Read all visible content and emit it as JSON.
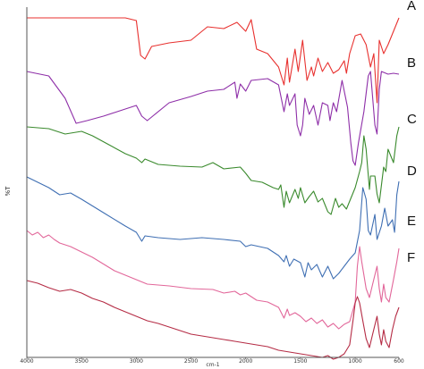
{
  "chart_data": {
    "type": "line",
    "title": "",
    "xlabel": "cm-1",
    "ylabel": "%T",
    "xlim": [
      4000,
      600
    ],
    "x_reversed": true,
    "x_ticks": [
      "4000",
      "3500",
      "3000",
      "2500",
      "2000",
      "1500",
      "1000",
      "600"
    ],
    "grid": false,
    "legend": "labels at right end of each trace",
    "series": [
      {
        "name": "A",
        "color": "#e8312f",
        "points": [
          [
            4000,
            0
          ],
          [
            3100,
            0
          ],
          [
            3000,
            -3
          ],
          [
            2960,
            -42
          ],
          [
            2920,
            -46
          ],
          [
            2860,
            -32
          ],
          [
            2700,
            -28
          ],
          [
            2500,
            -25
          ],
          [
            2350,
            -10
          ],
          [
            2200,
            -12
          ],
          [
            2080,
            -5
          ],
          [
            2000,
            -15
          ],
          [
            1950,
            -2
          ],
          [
            1900,
            -35
          ],
          [
            1800,
            -40
          ],
          [
            1700,
            -55
          ],
          [
            1650,
            -75
          ],
          [
            1620,
            -45
          ],
          [
            1600,
            -72
          ],
          [
            1550,
            -35
          ],
          [
            1520,
            -60
          ],
          [
            1480,
            -25
          ],
          [
            1440,
            -70
          ],
          [
            1400,
            -55
          ],
          [
            1380,
            -65
          ],
          [
            1340,
            -45
          ],
          [
            1300,
            -60
          ],
          [
            1250,
            -50
          ],
          [
            1200,
            -62
          ],
          [
            1150,
            -58
          ],
          [
            1100,
            -48
          ],
          [
            1080,
            -62
          ],
          [
            1050,
            -40
          ],
          [
            1000,
            -20
          ],
          [
            950,
            -18
          ],
          [
            900,
            -30
          ],
          [
            860,
            -55
          ],
          [
            830,
            -40
          ],
          [
            800,
            -95
          ],
          [
            780,
            -25
          ],
          [
            740,
            -40
          ],
          [
            700,
            -30
          ],
          [
            650,
            -15
          ],
          [
            600,
            0
          ]
        ]
      },
      {
        "name": "B",
        "color": "#8e2fa8",
        "points": [
          [
            4000,
            0
          ],
          [
            3800,
            -5
          ],
          [
            3650,
            -30
          ],
          [
            3550,
            -58
          ],
          [
            3450,
            -55
          ],
          [
            3300,
            -50
          ],
          [
            3100,
            -42
          ],
          [
            3000,
            -38
          ],
          [
            2950,
            -50
          ],
          [
            2900,
            -55
          ],
          [
            2850,
            -50
          ],
          [
            2700,
            -35
          ],
          [
            2500,
            -28
          ],
          [
            2350,
            -22
          ],
          [
            2200,
            -20
          ],
          [
            2100,
            -12
          ],
          [
            2080,
            -30
          ],
          [
            2050,
            -14
          ],
          [
            2000,
            -22
          ],
          [
            1950,
            -10
          ],
          [
            1800,
            -8
          ],
          [
            1700,
            -15
          ],
          [
            1650,
            -45
          ],
          [
            1620,
            -25
          ],
          [
            1600,
            -38
          ],
          [
            1550,
            -25
          ],
          [
            1530,
            -60
          ],
          [
            1500,
            -72
          ],
          [
            1480,
            -60
          ],
          [
            1460,
            -30
          ],
          [
            1420,
            -48
          ],
          [
            1380,
            -38
          ],
          [
            1340,
            -60
          ],
          [
            1300,
            -35
          ],
          [
            1250,
            -38
          ],
          [
            1230,
            -55
          ],
          [
            1200,
            -35
          ],
          [
            1170,
            -45
          ],
          [
            1120,
            -10
          ],
          [
            1070,
            -40
          ],
          [
            1040,
            -80
          ],
          [
            1020,
            -100
          ],
          [
            1000,
            -105
          ],
          [
            970,
            -80
          ],
          [
            920,
            -45
          ],
          [
            880,
            -5
          ],
          [
            860,
            0
          ],
          [
            820,
            -60
          ],
          [
            800,
            -70
          ],
          [
            780,
            -20
          ],
          [
            760,
            0
          ],
          [
            700,
            -3
          ],
          [
            650,
            -2
          ],
          [
            600,
            -3
          ]
        ]
      },
      {
        "name": "C",
        "color": "#3a8a2d",
        "points": [
          [
            4000,
            0
          ],
          [
            3800,
            -2
          ],
          [
            3650,
            -8
          ],
          [
            3500,
            -5
          ],
          [
            3400,
            -10
          ],
          [
            3250,
            -20
          ],
          [
            3100,
            -30
          ],
          [
            3000,
            -35
          ],
          [
            2950,
            -40
          ],
          [
            2920,
            -36
          ],
          [
            2800,
            -42
          ],
          [
            2600,
            -44
          ],
          [
            2400,
            -45
          ],
          [
            2300,
            -40
          ],
          [
            2200,
            -47
          ],
          [
            2050,
            -45
          ],
          [
            2000,
            -52
          ],
          [
            1950,
            -60
          ],
          [
            1850,
            -62
          ],
          [
            1750,
            -68
          ],
          [
            1700,
            -70
          ],
          [
            1680,
            -65
          ],
          [
            1650,
            -90
          ],
          [
            1630,
            -72
          ],
          [
            1600,
            -85
          ],
          [
            1550,
            -70
          ],
          [
            1520,
            -80
          ],
          [
            1500,
            -68
          ],
          [
            1460,
            -85
          ],
          [
            1420,
            -78
          ],
          [
            1380,
            -72
          ],
          [
            1340,
            -84
          ],
          [
            1300,
            -80
          ],
          [
            1250,
            -95
          ],
          [
            1220,
            -98
          ],
          [
            1180,
            -80
          ],
          [
            1150,
            -90
          ],
          [
            1120,
            -86
          ],
          [
            1080,
            -92
          ],
          [
            1040,
            -80
          ],
          [
            1000,
            -68
          ],
          [
            960,
            -50
          ],
          [
            940,
            -40
          ],
          [
            920,
            -10
          ],
          [
            900,
            -25
          ],
          [
            870,
            -70
          ],
          [
            860,
            -55
          ],
          [
            820,
            -55
          ],
          [
            800,
            -75
          ],
          [
            780,
            -85
          ],
          [
            740,
            -45
          ],
          [
            720,
            -50
          ],
          [
            700,
            -25
          ],
          [
            650,
            -40
          ],
          [
            620,
            -10
          ],
          [
            600,
            0
          ]
        ]
      },
      {
        "name": "D",
        "color": "#3f6fb3",
        "points": [
          [
            4000,
            0
          ],
          [
            3950,
            -3
          ],
          [
            3800,
            -12
          ],
          [
            3700,
            -20
          ],
          [
            3600,
            -18
          ],
          [
            3500,
            -25
          ],
          [
            3300,
            -40
          ],
          [
            3100,
            -55
          ],
          [
            3000,
            -62
          ],
          [
            2950,
            -72
          ],
          [
            2920,
            -66
          ],
          [
            2800,
            -68
          ],
          [
            2600,
            -70
          ],
          [
            2400,
            -68
          ],
          [
            2200,
            -70
          ],
          [
            2050,
            -72
          ],
          [
            2000,
            -78
          ],
          [
            1950,
            -76
          ],
          [
            1800,
            -80
          ],
          [
            1700,
            -88
          ],
          [
            1650,
            -95
          ],
          [
            1630,
            -88
          ],
          [
            1600,
            -100
          ],
          [
            1560,
            -92
          ],
          [
            1500,
            -96
          ],
          [
            1460,
            -112
          ],
          [
            1430,
            -96
          ],
          [
            1400,
            -104
          ],
          [
            1350,
            -98
          ],
          [
            1300,
            -112
          ],
          [
            1250,
            -100
          ],
          [
            1200,
            -114
          ],
          [
            1150,
            -108
          ],
          [
            1100,
            -100
          ],
          [
            1050,
            -92
          ],
          [
            1000,
            -85
          ],
          [
            960,
            -60
          ],
          [
            930,
            -12
          ],
          [
            900,
            -25
          ],
          [
            880,
            -60
          ],
          [
            860,
            -65
          ],
          [
            820,
            -42
          ],
          [
            800,
            -70
          ],
          [
            760,
            -55
          ],
          [
            730,
            -35
          ],
          [
            700,
            -55
          ],
          [
            660,
            -48
          ],
          [
            640,
            -62
          ],
          [
            620,
            -20
          ],
          [
            600,
            -5
          ]
        ]
      },
      {
        "name": "E",
        "color": "#e2679a",
        "points": [
          [
            4000,
            0
          ],
          [
            3950,
            -5
          ],
          [
            3900,
            -2
          ],
          [
            3850,
            -8
          ],
          [
            3800,
            -5
          ],
          [
            3750,
            -10
          ],
          [
            3700,
            -14
          ],
          [
            3600,
            -18
          ],
          [
            3400,
            -30
          ],
          [
            3200,
            -45
          ],
          [
            3000,
            -55
          ],
          [
            2900,
            -60
          ],
          [
            2700,
            -62
          ],
          [
            2500,
            -65
          ],
          [
            2300,
            -66
          ],
          [
            2200,
            -70
          ],
          [
            2100,
            -68
          ],
          [
            2050,
            -72
          ],
          [
            2000,
            -70
          ],
          [
            1900,
            -78
          ],
          [
            1800,
            -80
          ],
          [
            1700,
            -86
          ],
          [
            1650,
            -98
          ],
          [
            1620,
            -88
          ],
          [
            1600,
            -95
          ],
          [
            1550,
            -92
          ],
          [
            1500,
            -96
          ],
          [
            1450,
            -102
          ],
          [
            1400,
            -98
          ],
          [
            1350,
            -104
          ],
          [
            1300,
            -100
          ],
          [
            1250,
            -108
          ],
          [
            1200,
            -104
          ],
          [
            1150,
            -110
          ],
          [
            1100,
            -105
          ],
          [
            1050,
            -102
          ],
          [
            1000,
            -80
          ],
          [
            980,
            -40
          ],
          [
            960,
            -18
          ],
          [
            940,
            -35
          ],
          [
            900,
            -65
          ],
          [
            870,
            -75
          ],
          [
            840,
            -60
          ],
          [
            800,
            -40
          ],
          [
            780,
            -65
          ],
          [
            760,
            -80
          ],
          [
            740,
            -60
          ],
          [
            720,
            -75
          ],
          [
            690,
            -80
          ],
          [
            650,
            -55
          ],
          [
            620,
            -35
          ],
          [
            600,
            -20
          ]
        ]
      },
      {
        "name": "F",
        "color": "#b52c45",
        "points": [
          [
            4000,
            0
          ],
          [
            3900,
            -3
          ],
          [
            3800,
            -8
          ],
          [
            3700,
            -12
          ],
          [
            3600,
            -10
          ],
          [
            3500,
            -14
          ],
          [
            3400,
            -20
          ],
          [
            3300,
            -24
          ],
          [
            3200,
            -30
          ],
          [
            3100,
            -35
          ],
          [
            3000,
            -40
          ],
          [
            2900,
            -45
          ],
          [
            2800,
            -48
          ],
          [
            2700,
            -52
          ],
          [
            2600,
            -56
          ],
          [
            2500,
            -60
          ],
          [
            2400,
            -62
          ],
          [
            2300,
            -64
          ],
          [
            2200,
            -66
          ],
          [
            2100,
            -68
          ],
          [
            2000,
            -70
          ],
          [
            1900,
            -72
          ],
          [
            1800,
            -74
          ],
          [
            1700,
            -78
          ],
          [
            1600,
            -80
          ],
          [
            1500,
            -82
          ],
          [
            1400,
            -84
          ],
          [
            1300,
            -86
          ],
          [
            1250,
            -84
          ],
          [
            1200,
            -88
          ],
          [
            1150,
            -86
          ],
          [
            1100,
            -82
          ],
          [
            1050,
            -72
          ],
          [
            1020,
            -45
          ],
          [
            1000,
            -25
          ],
          [
            980,
            -18
          ],
          [
            960,
            -25
          ],
          [
            930,
            -45
          ],
          [
            900,
            -65
          ],
          [
            870,
            -75
          ],
          [
            840,
            -60
          ],
          [
            800,
            -40
          ],
          [
            780,
            -60
          ],
          [
            760,
            -72
          ],
          [
            740,
            -55
          ],
          [
            720,
            -68
          ],
          [
            690,
            -75
          ],
          [
            660,
            -55
          ],
          [
            630,
            -40
          ],
          [
            600,
            -30
          ]
        ]
      }
    ]
  }
}
